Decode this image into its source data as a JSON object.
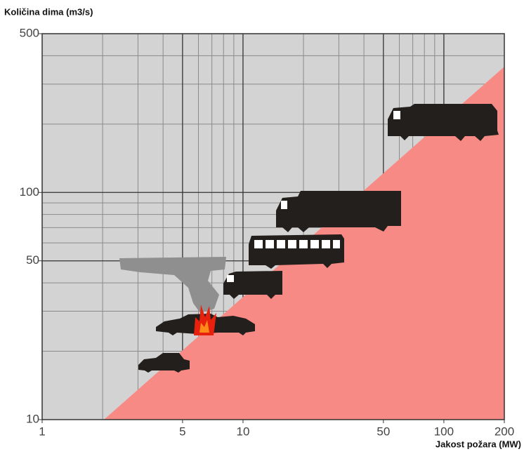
{
  "chart_data": {
    "type": "loglog-area",
    "title": "Količina dima (m3/s)",
    "x_label": "Jakost požara (MW)",
    "xlim": [
      1,
      200
    ],
    "ylim": [
      10,
      500
    ],
    "xticks": [
      1,
      5,
      10,
      50,
      100,
      200
    ],
    "yticks": [
      10,
      50,
      100,
      500
    ],
    "xminor": [
      2,
      3,
      4,
      6,
      7,
      8,
      9,
      20,
      30,
      40,
      60,
      70,
      80,
      90
    ],
    "yminor": [
      20,
      30,
      40,
      60,
      70,
      80,
      90,
      200,
      300,
      400
    ],
    "xmajor_grid": [
      5,
      10,
      50,
      100
    ],
    "ymajor_grid": [
      50,
      100
    ],
    "log_x": true,
    "log_y": true,
    "grid": true,
    "background": "#d3d3d3",
    "region_color": "#f88a86"
  }
}
